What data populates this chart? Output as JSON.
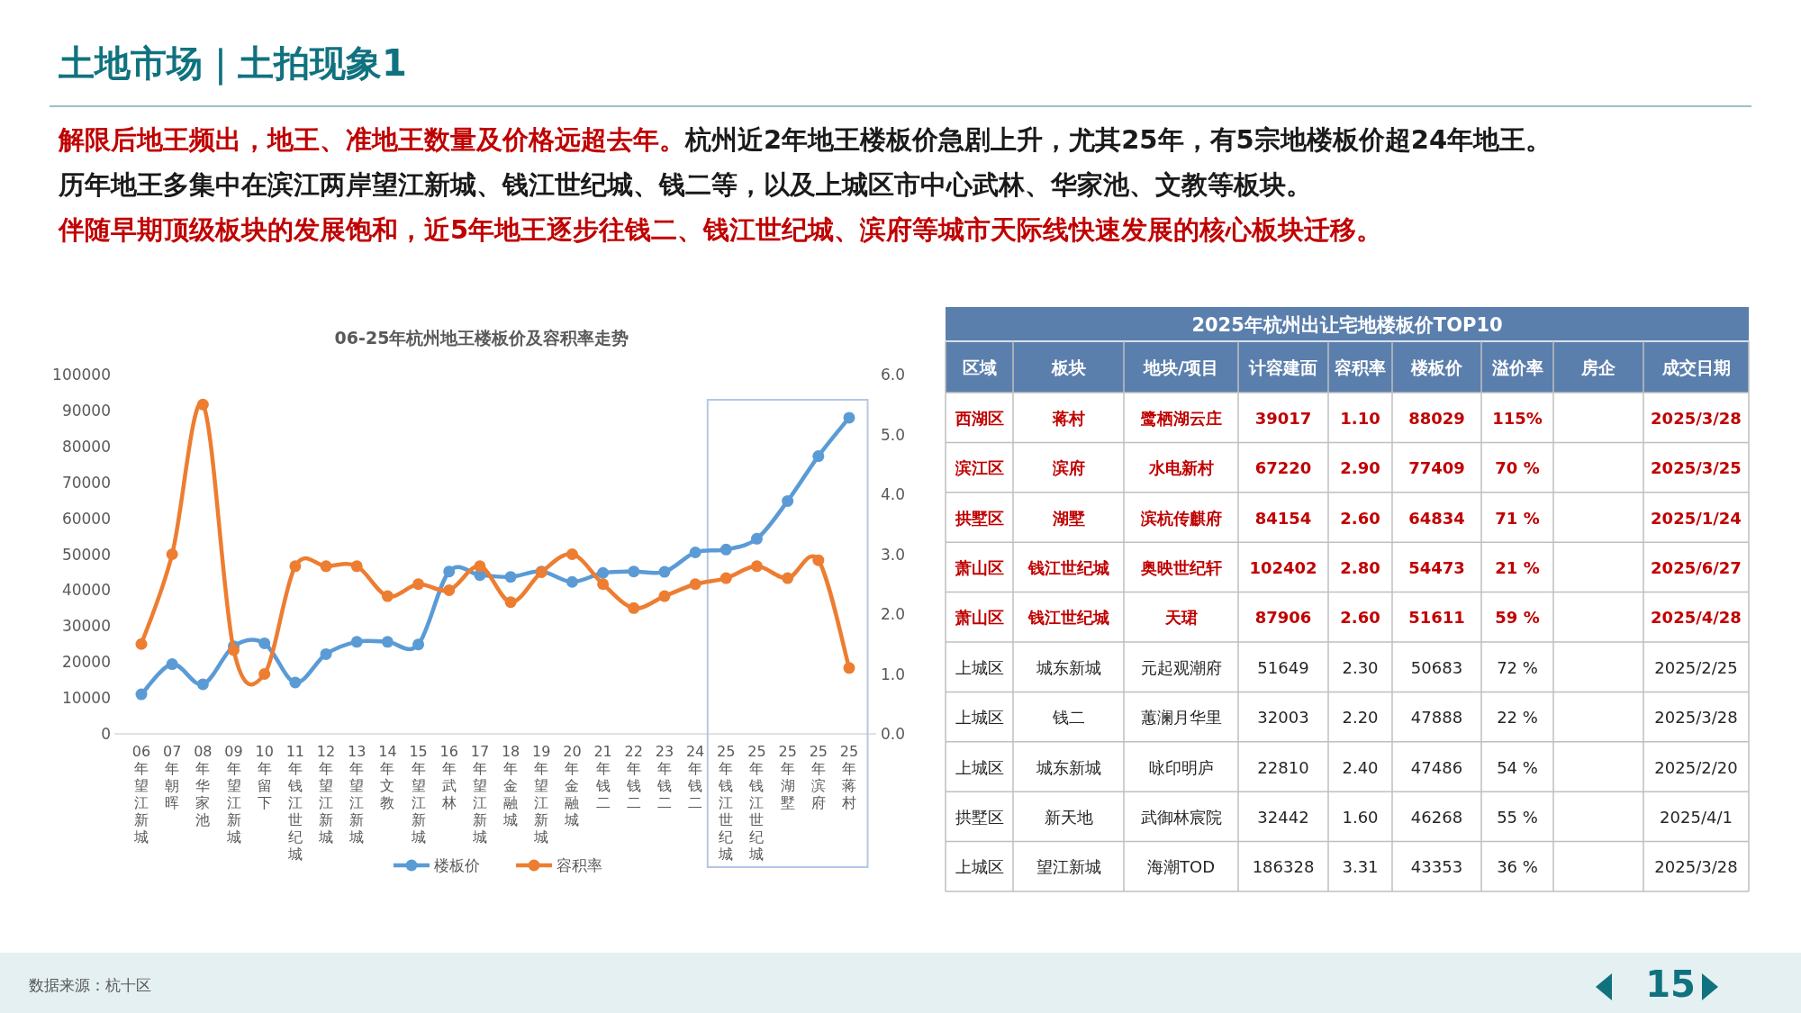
{
  "chart_data": [
    {
      "type": "line",
      "title": "06-25年杭州地王楼板价及容积率走势",
      "categories": [
        "06年望江新城",
        "07年朝晖",
        "08年华家池",
        "09年望江新城",
        "10年留下",
        "11年钱江世纪城",
        "12年望江新城",
        "13年望江新城",
        "14年文教",
        "15年望江新城",
        "16年武林",
        "17年望江新城",
        "18年金融城",
        "19年望江新城",
        "20年金融城",
        "21年钱二",
        "22年钱二",
        "23年钱二",
        "24年钱二",
        "25年钱江世纪城",
        "25年钱江世纪城",
        "25年湖墅",
        "25年滨府",
        "25年蒋村"
      ],
      "series": [
        {
          "name": "楼板价",
          "color": "#5b9bd5",
          "values": [
            11000,
            19400,
            13800,
            24400,
            25200,
            14300,
            22200,
            25600,
            25600,
            24900,
            45200,
            44200,
            43700,
            45200,
            42300,
            44800,
            45200,
            45100,
            50500,
            51300,
            54300,
            64800,
            77300,
            88000
          ]
        },
        {
          "name": "容积率",
          "color": "#ed7d31",
          "axis": "y2",
          "values": [
            1.5,
            3.0,
            5.5,
            1.4,
            1.0,
            2.8,
            2.8,
            2.8,
            2.3,
            2.5,
            2.4,
            2.8,
            2.2,
            2.7,
            3.0,
            2.5,
            2.1,
            2.3,
            2.5,
            2.6,
            2.8,
            2.6,
            2.9,
            1.1
          ]
        }
      ],
      "ylim": [
        0,
        100000
      ],
      "yticks": [
        0,
        10000,
        20000,
        30000,
        40000,
        50000,
        60000,
        70000,
        80000,
        90000,
        100000
      ],
      "y2lim": [
        0,
        6
      ],
      "y2ticks": [
        {
          "value": 0,
          "label": "0.0"
        },
        {
          "value": 1,
          "label": "1.0"
        },
        {
          "value": 2,
          "label": "2.0"
        },
        {
          "value": 3,
          "label": "3.0"
        },
        {
          "value": 4,
          "label": "4.0"
        },
        {
          "value": 5,
          "label": "5.0"
        },
        {
          "value": 6,
          "label": "6.0"
        }
      ],
      "marker": "circle",
      "line_style": "solid",
      "grid": false,
      "legend": "bottom",
      "annotations": [
        "土地市场｜土拍现象1",
        "解限后地王频出，地王、准地王数量及价格远超去年。",
        "杭州近2年地王楼板价急剧上升，尤其25年，有5宗地楼板价超24年地王。",
        "历年地王多集中在滨江两岸望江新城、钱江世纪城、钱二等，以及上城区市中心武林、华家池、文教等板块。",
        "伴随早期顶级板块的发展饱和，近5年地王逐步往钱二、钱江世纪城、滨府等城市天际线快速发展的核心板块迁移。",
        "数据来源：杭十区",
        "15"
      ]
    },
    {
      "type": "other",
      "title": "2025年杭州出让宅地楼板价TOP10",
      "colors": [
        "#ffffff",
        "#c00000",
        "#c00000",
        "#c00000",
        "#c00000",
        "#c00000",
        "#262626",
        "#262626",
        "#262626",
        "#262626",
        "#262626"
      ],
      "annotations": [
        "区域",
        "板块",
        "地块/项目",
        "计容建面",
        "容积率",
        "楼板价",
        "溢价率",
        "房企",
        "成交日期",
        "西湖区",
        "蒋村",
        "鹭栖湖云庄",
        "39017",
        "1.10",
        "88029",
        "115%",
        null,
        "2025/3/28",
        "滨江区",
        "滨府",
        "水电新村",
        "67220",
        "2.90",
        "77409",
        "70 %",
        null,
        "2025/3/25",
        "拱墅区",
        "湖墅",
        "滨杭传麒府",
        "84154",
        "2.60",
        "64834",
        "71 %",
        null,
        "2025/1/24",
        "萧山区",
        "钱江世纪城",
        "奥映世纪轩",
        "102402",
        "2.80",
        "54473",
        "21 %",
        null,
        "2025/6/27",
        "萧山区",
        "钱江世纪城",
        "天珺",
        "87906",
        "2.60",
        "51611",
        "59 %",
        null,
        "2025/4/28",
        "上城区",
        "城东新城",
        "元起观潮府",
        "51649",
        "2.30",
        "50683",
        "72 %",
        null,
        "2025/2/25",
        "上城区",
        "钱二",
        "蕙澜月华里",
        "32003",
        "2.20",
        "47888",
        "22 %",
        null,
        "2025/3/28",
        "上城区",
        "城东新城",
        "咏印明庐",
        "22810",
        "2.40",
        "47486",
        "54 %",
        null,
        "2025/2/20",
        "拱墅区",
        "新天地",
        "武御林宸院",
        "32442",
        "1.60",
        "46268",
        "55 %",
        null,
        "2025/4/1",
        "上城区",
        "望江新城",
        "海潮TOD",
        "186328",
        "3.31",
        "43353",
        "36 %",
        null,
        "2025/3/28"
      ]
    }
  ]
}
